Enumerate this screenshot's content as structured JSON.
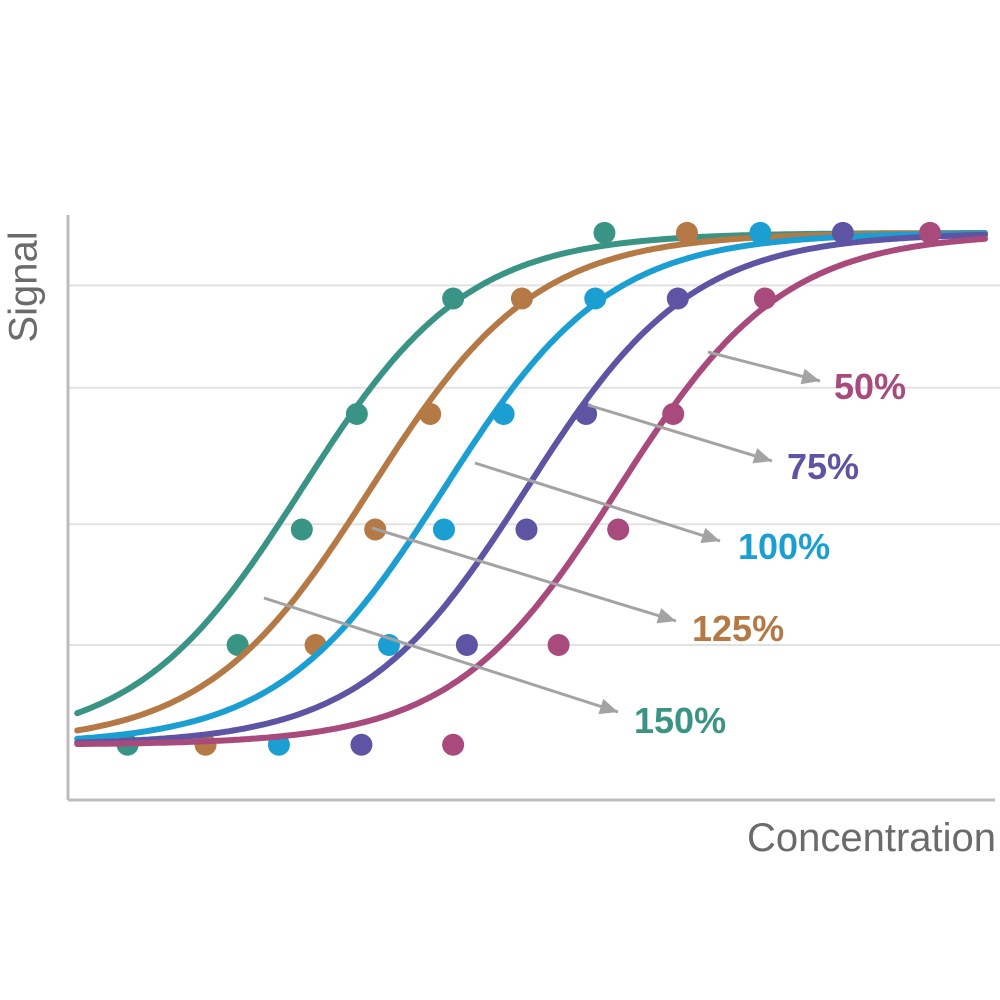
{
  "chart_data": {
    "type": "line",
    "xlabel": "Concentration",
    "ylabel": "Signal",
    "xlim": [
      0,
      100
    ],
    "ylim": [
      0,
      100
    ],
    "x_ticks_visible": false,
    "y_ticks_visible": false,
    "grid": "horizontal",
    "legend": "annotations with arrows to the right of the curves",
    "series": [
      {
        "name": "150%",
        "color": "#3a9485",
        "midpoint": 25.5,
        "slope": 9.0,
        "points": [
          [
            6.5,
            1
          ],
          [
            18.5,
            20
          ],
          [
            25.5,
            42
          ],
          [
            31.5,
            64
          ],
          [
            42,
            86
          ],
          [
            58.5,
            98.5
          ]
        ]
      },
      {
        "name": "125%",
        "color": "#b47945",
        "midpoint": 33,
        "slope": 9.0,
        "points": [
          [
            15,
            1
          ],
          [
            27,
            20
          ],
          [
            33.5,
            42
          ],
          [
            39.5,
            64
          ],
          [
            49.5,
            86
          ],
          [
            67.5,
            98.5
          ]
        ]
      },
      {
        "name": "100%",
        "color": "#1b9fd3",
        "midpoint": 41,
        "slope": 9.0,
        "points": [
          [
            23,
            1
          ],
          [
            35,
            20
          ],
          [
            41,
            42
          ],
          [
            47.5,
            64
          ],
          [
            57.5,
            86
          ],
          [
            75.5,
            98.5
          ]
        ]
      },
      {
        "name": "75%",
        "color": "#5d55a3",
        "midpoint": 50,
        "slope": 9.0,
        "points": [
          [
            32,
            1
          ],
          [
            43.5,
            20
          ],
          [
            50,
            42
          ],
          [
            56.5,
            64
          ],
          [
            66.5,
            86
          ],
          [
            84.5,
            98.5
          ]
        ]
      },
      {
        "name": "50%",
        "color": "#a84a7c",
        "midpoint": 60,
        "slope": 9.0,
        "points": [
          [
            42,
            1
          ],
          [
            53.5,
            20
          ],
          [
            60,
            42
          ],
          [
            66,
            64
          ],
          [
            76,
            86
          ],
          [
            94,
            98.5
          ]
        ]
      }
    ]
  }
}
